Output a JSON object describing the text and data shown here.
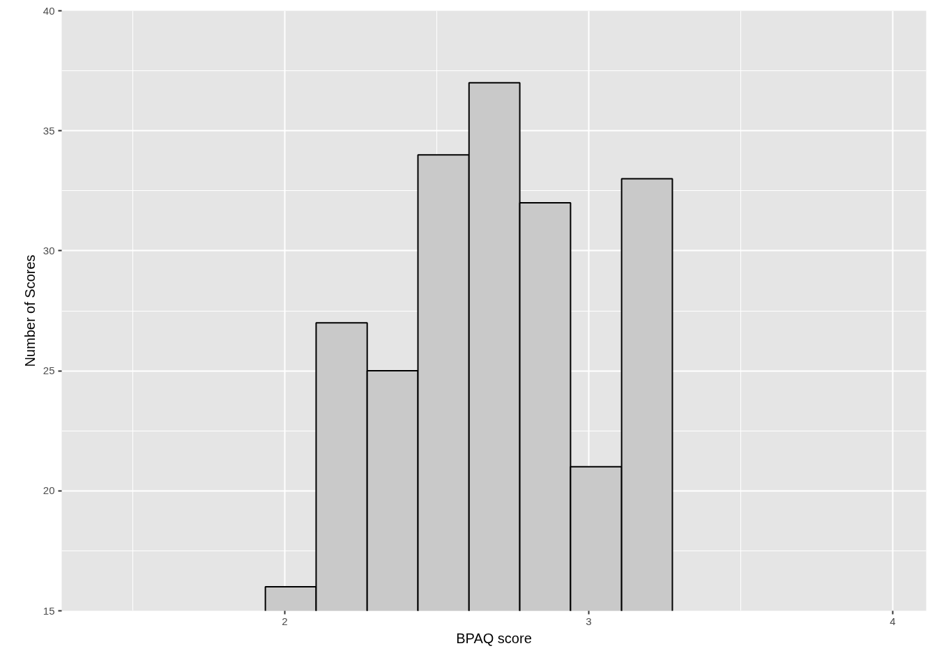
{
  "chart_data": {
    "type": "histogram",
    "xlabel": "BPAQ score",
    "ylabel": "Number of Scores",
    "bins": [
      1.936,
      2.103,
      2.271,
      2.438,
      2.606,
      2.773,
      2.94,
      3.108,
      3.275
    ],
    "values": [
      16,
      27,
      25,
      34,
      37,
      32,
      21,
      33
    ],
    "color": "#c9c9c9",
    "xlim": [
      1.266,
      4.11
    ],
    "ylim": [
      15,
      40
    ],
    "xticks": [
      2,
      3,
      4
    ],
    "yticks": [
      15,
      20,
      25,
      30,
      35,
      40
    ],
    "grid": true
  }
}
